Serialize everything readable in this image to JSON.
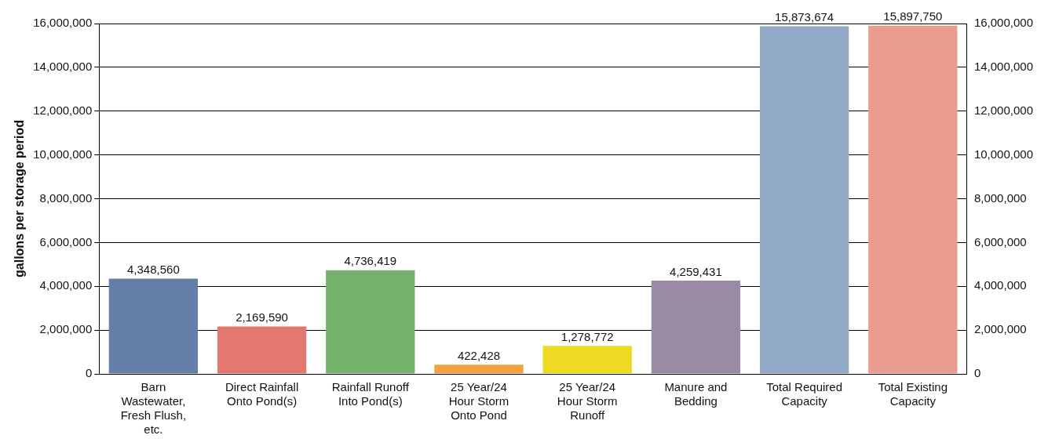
{
  "chart_data": {
    "type": "bar",
    "ylabel": "gallons per storage period",
    "categories": [
      "Barn Wastewater, Fresh Flush, etc.",
      "Direct Rainfall Onto Pond(s)",
      "Rainfall Runoff Into Pond(s)",
      "25 Year/24 Hour Storm Onto Pond",
      "25 Year/24 Hour Storm Runoff",
      "Manure and Bedding",
      "Total Required Capacity",
      "Total Existing Capacity"
    ],
    "values": [
      4348560,
      2169590,
      4736419,
      422428,
      1278772,
      4259431,
      15873674,
      15897750
    ],
    "value_labels": [
      "4,348,560",
      "2,169,590",
      "4,736,419",
      "422,428",
      "1,278,772",
      "4,259,431",
      "15,873,674",
      "15,897,750"
    ],
    "colors": [
      "#6580a8",
      "#e2786f",
      "#76b26e",
      "#f4a340",
      "#eeda20",
      "#9b8aa6",
      "#93abc7",
      "#e89d8e"
    ],
    "ylim": [
      0,
      16000000
    ],
    "yticks": [
      0,
      {
        "value": 2000000,
        "label": "2,000,000"
      },
      {
        "value": 4000000,
        "label": "4,000,000"
      },
      {
        "value": 6000000,
        "label": "6,000,000"
      },
      {
        "value": 8000000,
        "label": "8,000,000"
      },
      {
        "value": 10000000,
        "label": "10,000,000"
      },
      {
        "value": 12000000,
        "label": "12,000,000"
      },
      {
        "value": 14000000,
        "label": "14,000,000"
      },
      {
        "value": 16000000,
        "label": "16,000,000"
      }
    ],
    "y2lim": [
      0,
      16000000
    ],
    "y2ticks": [
      0,
      {
        "value": 2000000,
        "label": "2,000,000"
      },
      {
        "value": 4000000,
        "label": "4,000,000"
      },
      {
        "value": 6000000,
        "label": "6,000,000"
      },
      {
        "value": 8000000,
        "label": "8,000,000"
      },
      {
        "value": 10000000,
        "label": "10,000,000"
      },
      {
        "value": 12000000,
        "label": "12,000,000"
      },
      {
        "value": 14000000,
        "label": "14,000,000"
      },
      {
        "value": 16000000,
        "label": "16,000,000"
      }
    ],
    "grid": "y",
    "legend": false
  }
}
